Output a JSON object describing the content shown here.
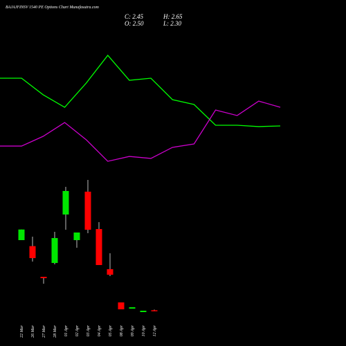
{
  "header": {
    "title": "BAJAJFINSV 1540 PE Options Chart Munafasutra.com",
    "ohlc": [
      "C: 2.45",
      "H: 2.65",
      "O: 2.50",
      "L: 2.30"
    ]
  },
  "chart_data": [
    {
      "type": "line",
      "categories": [
        null,
        null,
        null,
        null,
        null,
        null,
        null,
        null,
        null,
        null,
        null,
        null,
        null,
        null
      ],
      "ylim": [
        0,
        100
      ],
      "series": [
        {
          "color": "#00ff00",
          "values": [
            72.1,
            72.1,
            59.5,
            50,
            68.4,
            89.5,
            70.5,
            72.1,
            55.8,
            52.1,
            36.3,
            36.3,
            35.3,
            35.8
          ]
        },
        {
          "color": "#cc00cc",
          "values": [
            20.5,
            20.5,
            27.9,
            38.4,
            25.3,
            8.9,
            12.6,
            11.1,
            19.5,
            22.1,
            47.9,
            43.7,
            54.7,
            50
          ]
        }
      ]
    },
    {
      "type": "candlestick",
      "categories": [
        "22 Mar",
        "26 Mar",
        "27 Mar",
        "28 Mar",
        "01 Apr",
        "02 Apr",
        "03 Apr",
        "04 Apr",
        "05 Apr",
        "08 Apr",
        "09 Apr",
        "10 Apr",
        "12 Apr"
      ],
      "ylim": [
        0,
        32
      ],
      "up_color": "#00e600",
      "down_color": "#ff0000",
      "open": [
        17.7,
        16.4,
        9.75,
        12.75,
        23.25,
        17.7,
        28.2,
        20.1,
        11.4,
        4.2,
        2.85,
        2.1,
        2.5
      ],
      "high": [
        20.0,
        18.45,
        9.75,
        19.5,
        29.25,
        19.35,
        30.75,
        21.6,
        14.85,
        4.2,
        3.15,
        2.4,
        2.65
      ],
      "low": [
        17.7,
        13.05,
        8.25,
        12.45,
        19.95,
        16.05,
        19.2,
        12.3,
        9.9,
        2.7,
        2.85,
        2.1,
        2.3
      ],
      "close": [
        20.0,
        13.8,
        9.45,
        18.15,
        28.35,
        19.35,
        19.95,
        12.3,
        10.2,
        2.7,
        3.15,
        2.4,
        2.45
      ]
    }
  ]
}
